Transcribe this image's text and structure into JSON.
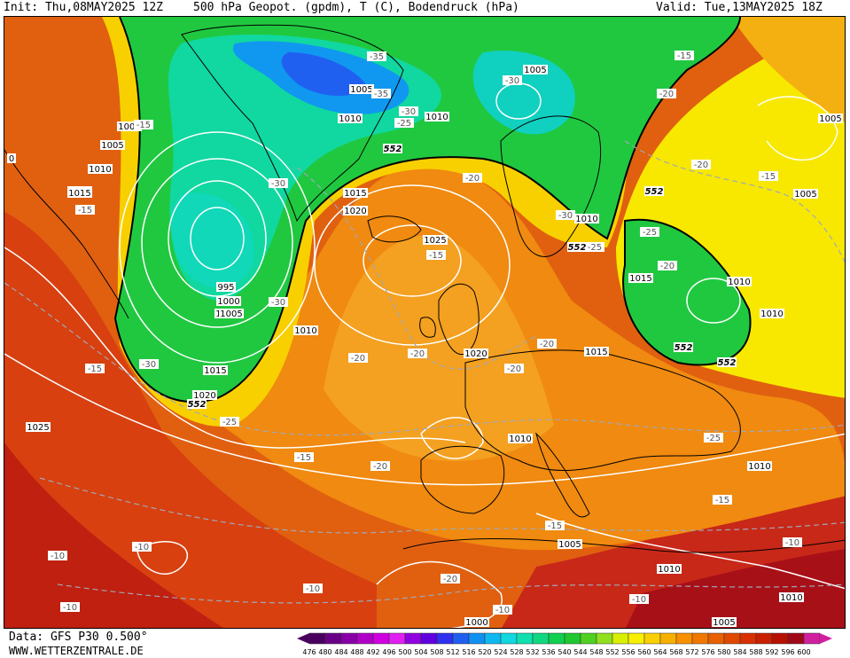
{
  "header": {
    "init": "Init: Thu,08MAY2025 12Z",
    "title": "500 hPa Geopot. (gpdm), T (C), Bodendruck (hPa)",
    "valid": "Valid: Tue,13MAY2025 18Z"
  },
  "footer": {
    "data_source": "Data: GFS P30 0.500°",
    "website": "WWW.WETTERZENTRALE.DE"
  },
  "colorbar": {
    "ticks": [
      "476",
      "480",
      "484",
      "488",
      "492",
      "496",
      "500",
      "504",
      "508",
      "512",
      "516",
      "520",
      "524",
      "528",
      "532",
      "536",
      "540",
      "544",
      "548",
      "552",
      "556",
      "560",
      "564",
      "568",
      "572",
      "576",
      "580",
      "584",
      "588",
      "592",
      "596",
      "600"
    ],
    "colors": [
      "#4a0060",
      "#6a0086",
      "#8a00a8",
      "#b000c8",
      "#d000e0",
      "#e020f0",
      "#9000e0",
      "#6000e0",
      "#3030f0",
      "#2060f0",
      "#1090f0",
      "#10b8f0",
      "#10d8e0",
      "#10e0b0",
      "#10d880",
      "#10d050",
      "#20c830",
      "#50d020",
      "#90e020",
      "#d8f000",
      "#f8f000",
      "#f8d000",
      "#f8b000",
      "#f89000",
      "#f07800",
      "#e86000",
      "#e04800",
      "#d83000",
      "#c82000",
      "#b81000",
      "#a00818",
      "#d020a0"
    ]
  },
  "map": {
    "pressure_labels": [
      "1015",
      "1005",
      "1000",
      "1005",
      "1010",
      "1015",
      "1010",
      "1005",
      "1010",
      "1015",
      "1020",
      "995",
      "1000",
      "1005",
      "1010",
      "1015",
      "1020",
      "1025",
      "1005",
      "1010",
      "1010",
      "1015",
      "1015",
      "1020",
      "1010",
      "1010",
      "1005",
      "1005",
      "1025",
      "1010",
      "1005",
      "1010",
      "1000",
      "1005",
      "1010",
      "0"
    ],
    "temp_labels": [
      "-35",
      "-35",
      "-30",
      "-30",
      "-25",
      "-30",
      "-15",
      "-30",
      "-30",
      "-30",
      "-20",
      "-15",
      "-15",
      "-20",
      "-20",
      "-20",
      "-25",
      "-25",
      "-25",
      "-20",
      "-20",
      "-15",
      "-20",
      "-20",
      "-25",
      "-15",
      "-20",
      "-15",
      "-10",
      "-10",
      "-10",
      "-10",
      "-10",
      "-10",
      "-10",
      "-15",
      "-15",
      "-20",
      "-15"
    ],
    "geopot_labels": [
      "552",
      "552",
      "552",
      "552",
      "552",
      "552"
    ]
  }
}
